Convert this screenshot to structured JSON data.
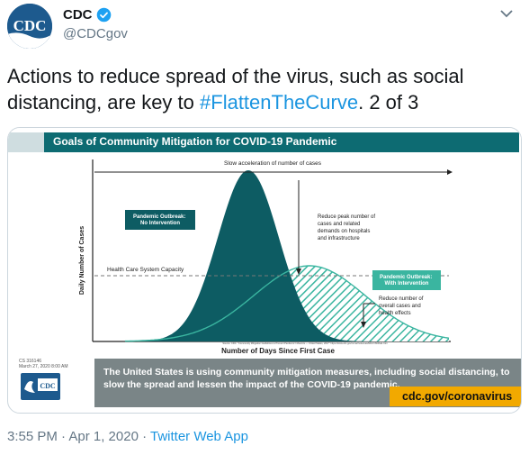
{
  "account": {
    "display_name": "CDC",
    "handle": "@CDCgov",
    "avatar_text": "CDC"
  },
  "tweet": {
    "text_before": "Actions to reduce spread of the virus, such as social distancing, are key to ",
    "hashtag": "#FlattenTheCurve",
    "text_after": ". 2 of 3"
  },
  "media": {
    "banner_title": "Goals of Community Mitigation for COVID-19 Pandemic",
    "footer_text": "The United States is using community mitigation measures, including social distancing, to slow the spread and lessen the impact of the COVID-19 pandemic.",
    "link_text": "cdc.gov/coronavirus",
    "cs_id_line1": "CS 316146",
    "cs_id_line2": "March 27, 2020 8:00 AM",
    "logo_text": "CDC"
  },
  "chart_data": {
    "type": "area",
    "xlabel": "Number of Days Since First Case",
    "ylabel": "Daily Number of Cases",
    "top_annotation": "Slow acceleration of number of cases",
    "series": [
      {
        "name": "Pandemic Outbreak: No Intervention",
        "color": "#0d5c63"
      },
      {
        "name": "Pandemic Outbreak: With Intervention",
        "color": "#3ab5a0"
      }
    ],
    "threshold_label": "Health Care System Capacity",
    "annotation_peak": "Reduce peak number of cases and related demands on hospitals and infrastructure",
    "annotation_overall": "Reduce number of overall cases and health effects",
    "source_note": "Source: CDC. \"Community Mitigation Guidelines to Prevent Pandemic Influenza — United States, 2017\" https://www.cdc.gov/mmwr/volumes/66/rr/rr6601a1.htm",
    "grid": false
  },
  "meta": {
    "time": "3:55 PM · Apr 1, 2020 · ",
    "source": "Twitter Web App"
  },
  "colors": {
    "accent": "#1b95e0",
    "banner": "#0d6b72",
    "link_bg": "#f2a900"
  }
}
